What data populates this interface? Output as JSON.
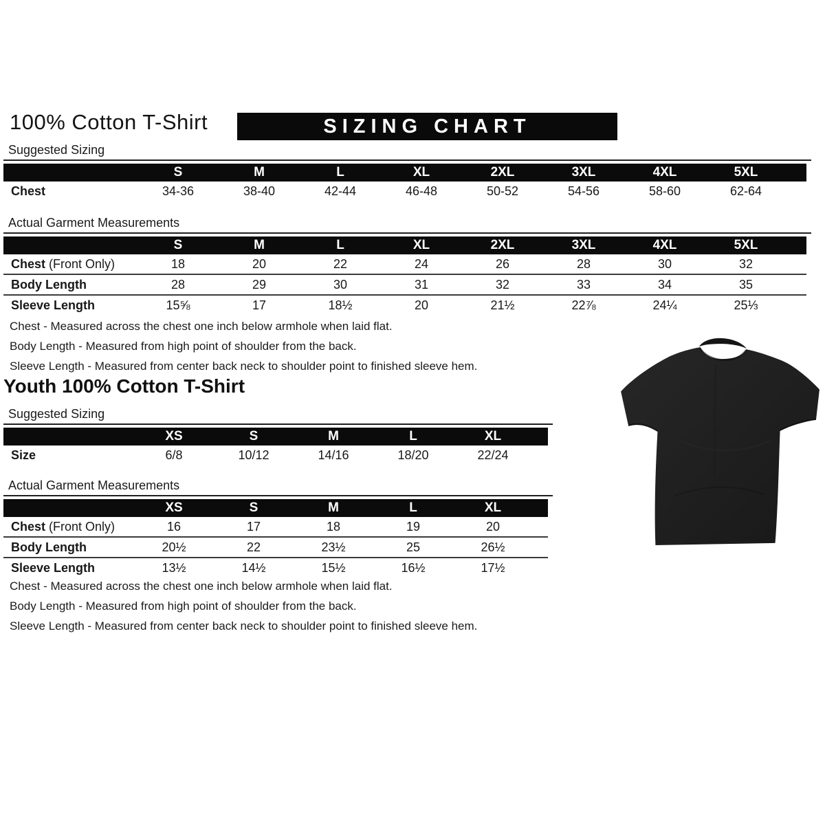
{
  "colors": {
    "banner_background": "#0a0a0a",
    "banner_text": "#ffffff",
    "table_header_background": "#0b0b0b",
    "tshirt_color": "#1f1f1f"
  },
  "adult": {
    "title": "100% Cotton T-Shirt",
    "banner": "SIZING CHART",
    "suggested": {
      "label": "Suggested Sizing",
      "columns": [
        "S",
        "M",
        "L",
        "XL",
        "2XL",
        "3XL",
        "4XL",
        "5XL"
      ],
      "rows": [
        {
          "label": "Chest",
          "suffix": "",
          "values": [
            "34-36",
            "38-40",
            "42-44",
            "46-48",
            "50-52",
            "54-56",
            "58-60",
            "62-64"
          ]
        }
      ]
    },
    "actual": {
      "label": "Actual Garment Measurements",
      "columns": [
        "S",
        "M",
        "L",
        "XL",
        "2XL",
        "3XL",
        "4XL",
        "5XL"
      ],
      "rows": [
        {
          "label": "Chest",
          "suffix": " (Front Only)",
          "values": [
            "18",
            "20",
            "22",
            "24",
            "26",
            "28",
            "30",
            "32"
          ]
        },
        {
          "label": "Body Length",
          "suffix": "",
          "values": [
            "28",
            "29",
            "30",
            "31",
            "32",
            "33",
            "34",
            "35"
          ]
        },
        {
          "label": "Sleeve Length",
          "suffix": "",
          "values": [
            "15⅝",
            "17",
            "18½",
            "20",
            "21½",
            "22⅞",
            "24¼",
            "25⅓"
          ]
        }
      ]
    },
    "notes": [
      "Chest - Measured across the chest one inch below armhole when laid flat.",
      "Body Length - Measured from high point of shoulder from the back.",
      "Sleeve Length - Measured from center back neck to shoulder point to finished sleeve hem."
    ]
  },
  "youth": {
    "title": "Youth 100% Cotton T-Shirt",
    "suggested": {
      "label": "Suggested Sizing",
      "columns": [
        "XS",
        "S",
        "M",
        "L",
        "XL"
      ],
      "rows": [
        {
          "label": "Size",
          "suffix": "",
          "values": [
            "6/8",
            "10/12",
            "14/16",
            "18/20",
            "22/24"
          ]
        }
      ]
    },
    "actual": {
      "label": "Actual Garment Measurements",
      "columns": [
        "XS",
        "S",
        "M",
        "L",
        "XL"
      ],
      "rows": [
        {
          "label": "Chest",
          "suffix": " (Front Only)",
          "values": [
            "16",
            "17",
            "18",
            "19",
            "20"
          ]
        },
        {
          "label": "Body Length",
          "suffix": "",
          "values": [
            "20½",
            "22",
            "23½",
            "25",
            "26½"
          ]
        },
        {
          "label": "Sleeve Length",
          "suffix": "",
          "values": [
            "13½",
            "14½",
            "15½",
            "16½",
            "17½"
          ]
        }
      ]
    },
    "notes": [
      "Chest - Measured across the chest one inch below armhole when laid flat.",
      "Body Length - Measured from high point of shoulder from the back.",
      "Sleeve Length - Measured from center back neck to shoulder point to finished sleeve hem."
    ]
  },
  "tshirt_image": {
    "description": "black short-sleeve crew-neck t-shirt photo"
  }
}
